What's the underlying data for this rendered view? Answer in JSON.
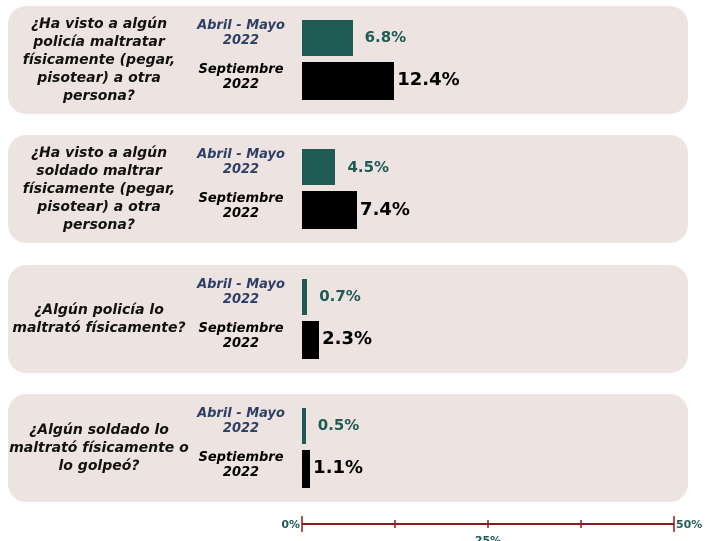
{
  "chart_data": {
    "type": "bar",
    "orientation": "horizontal",
    "categories": [
      "¿Ha visto a algún policía maltratar físicamente (pegar, pisotear) a otra persona?",
      "¿Ha visto a algún soldado maltrar físicamente (pegar, pisotear) a otra persona?",
      "¿Algún policía lo maltrató físicamente?",
      "¿Algún soldado lo maltrató físicamente o lo golpeó?"
    ],
    "series": [
      {
        "name": "Abril - Mayo 2022",
        "color": "#1f5a55",
        "values": [
          6.8,
          4.5,
          0.7,
          0.5
        ],
        "value_labels": [
          "6.8%",
          "4.5%",
          "0.7%",
          "0.5%"
        ]
      },
      {
        "name": "Septiembre 2022",
        "color": "#000000",
        "values": [
          12.4,
          7.4,
          2.3,
          1.1
        ],
        "value_labels": [
          "12.4%",
          "7.4%",
          "2.3%",
          "1.1%"
        ]
      }
    ],
    "xlim": [
      0,
      50
    ],
    "xticks": [
      {
        "value": 0,
        "label": "0%"
      },
      {
        "value": 25,
        "label": "25%"
      },
      {
        "value": 50,
        "label": "50%"
      }
    ],
    "minor_xticks": [
      12.5,
      37.5
    ],
    "axis_color": "#8b1a1a",
    "panel_color": "#ede4e1",
    "series_label_colors": [
      "#2e3f66",
      "#000000"
    ]
  }
}
